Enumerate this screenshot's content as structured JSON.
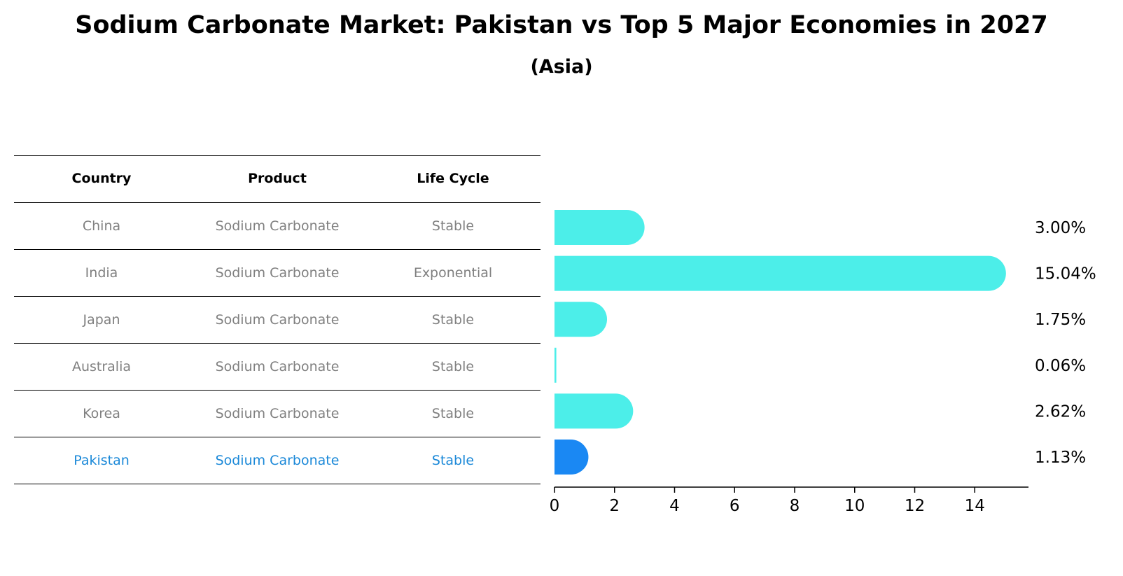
{
  "title": "Sodium Carbonate Market: Pakistan vs Top 5 Major Economies in 2027",
  "subtitle": "(Asia)",
  "table": {
    "headers": [
      "Country",
      "Product",
      "Life Cycle"
    ],
    "rows": [
      {
        "country": "China",
        "product": "Sodium Carbonate",
        "life_cycle": "Stable"
      },
      {
        "country": "India",
        "product": "Sodium Carbonate",
        "life_cycle": "Exponential"
      },
      {
        "country": "Japan",
        "product": "Sodium Carbonate",
        "life_cycle": "Stable"
      },
      {
        "country": "Australia",
        "product": "Sodium Carbonate",
        "life_cycle": "Stable"
      },
      {
        "country": "Korea",
        "product": "Sodium Carbonate",
        "life_cycle": "Stable"
      },
      {
        "country": "Pakistan",
        "product": "Sodium Carbonate",
        "life_cycle": "Stable"
      }
    ]
  },
  "colors": {
    "bar": "#4ceee9",
    "highlight_bar": "#1a88f3",
    "highlight_text": "#1a88d8",
    "muted_text": "#808080"
  },
  "chart_data": {
    "type": "bar",
    "orientation": "horizontal",
    "categories": [
      "China",
      "India",
      "Japan",
      "Australia",
      "Korea",
      "Pakistan"
    ],
    "values": [
      3.0,
      15.04,
      1.75,
      0.06,
      2.62,
      1.13
    ],
    "value_labels": [
      "3.00%",
      "15.04%",
      "1.75%",
      "0.06%",
      "2.62%",
      "1.13%"
    ],
    "highlight_category": "Pakistan",
    "xlim": [
      0,
      15.79
    ],
    "xticks": [
      0,
      2,
      4,
      6,
      8,
      10,
      12,
      14
    ],
    "xtick_labels": [
      "0",
      "2",
      "4",
      "6",
      "8",
      "10",
      "12",
      "14"
    ],
    "xlabel": "",
    "ylabel": "",
    "grid": false
  }
}
